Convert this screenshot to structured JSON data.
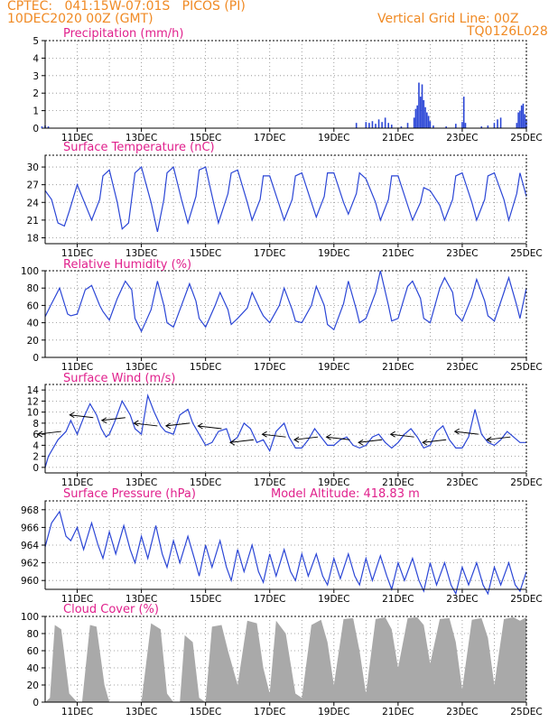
{
  "header": {
    "line1": "CPTEC:   041:15W-07:01S   PICOS (PI)",
    "line2": "10DEC2020 00Z (GMT)",
    "grid_note": "Vertical Grid Line: 00Z",
    "model_code": "TQ0126L028"
  },
  "colors": {
    "header": "#f08a24",
    "title": "#e0208c",
    "line": "#2b46d6",
    "cloud": "#a9a9a9"
  },
  "x_tick_labels": [
    "11DEC",
    "13DEC",
    "15DEC",
    "17DEC",
    "19DEC",
    "21DEC",
    "23DEC",
    "25DEC"
  ],
  "chart_data": [
    {
      "type": "bar",
      "title": "Precipitation (mm/h)",
      "ylim": [
        0,
        5
      ],
      "yticks": [
        0,
        1,
        2,
        3,
        4,
        5
      ],
      "x_days": [
        9.9,
        10.0,
        10.1,
        19.7,
        20.0,
        20.1,
        20.2,
        20.3,
        20.4,
        20.5,
        20.6,
        20.7,
        20.8,
        21.1,
        21.3,
        21.5,
        21.55,
        21.6,
        21.65,
        21.7,
        21.75,
        21.8,
        21.85,
        21.9,
        21.95,
        22.0,
        22.1,
        22.5,
        22.8,
        23.0,
        23.05,
        23.1,
        23.6,
        23.8,
        24.0,
        24.1,
        24.2,
        24.7,
        24.75,
        24.8,
        24.85,
        24.9,
        24.95,
        25.0
      ],
      "values": [
        0.1,
        0.15,
        0.1,
        0.3,
        0.35,
        0.3,
        0.4,
        0.25,
        0.5,
        0.35,
        0.6,
        0.3,
        0.2,
        0.1,
        0.3,
        0.6,
        1.1,
        1.3,
        2.6,
        1.8,
        2.5,
        1.6,
        1.2,
        0.9,
        0.7,
        0.4,
        0.15,
        0.1,
        0.25,
        0.35,
        1.8,
        0.3,
        0.1,
        0.15,
        0.3,
        0.5,
        0.6,
        0.3,
        0.9,
        1.0,
        1.3,
        1.4,
        0.8,
        0.5
      ]
    },
    {
      "type": "line",
      "title": "Surface Temperature (nC)",
      "ylim": [
        17,
        32
      ],
      "yticks": [
        18,
        21,
        24,
        27,
        30
      ],
      "x_days": [
        10.0,
        10.2,
        10.4,
        10.6,
        10.75,
        11.0,
        11.3,
        11.45,
        11.7,
        11.8,
        12.0,
        12.25,
        12.4,
        12.6,
        12.8,
        13.0,
        13.3,
        13.5,
        13.7,
        13.8,
        14.0,
        14.25,
        14.45,
        14.7,
        14.8,
        15.0,
        15.25,
        15.4,
        15.7,
        15.8,
        16.0,
        16.3,
        16.45,
        16.7,
        16.8,
        17.0,
        17.3,
        17.45,
        17.7,
        17.8,
        18.0,
        18.3,
        18.45,
        18.7,
        18.8,
        19.0,
        19.3,
        19.45,
        19.7,
        19.8,
        20.0,
        20.3,
        20.45,
        20.7,
        20.8,
        21.0,
        21.3,
        21.45,
        21.7,
        21.8,
        22.0,
        22.3,
        22.45,
        22.7,
        22.8,
        23.0,
        23.3,
        23.45,
        23.7,
        23.8,
        24.0,
        24.3,
        24.45,
        24.7,
        24.8,
        25.0
      ],
      "values": [
        26.0,
        24.5,
        20.5,
        20.0,
        22.5,
        27.0,
        23.0,
        21.0,
        24.5,
        28.5,
        29.5,
        24.0,
        19.5,
        20.5,
        29.0,
        30.0,
        24.0,
        19.0,
        24.5,
        29.0,
        30.0,
        24.5,
        20.5,
        25.0,
        29.5,
        30.0,
        24.0,
        20.5,
        25.5,
        29.0,
        29.5,
        24.0,
        21.0,
        24.5,
        28.5,
        28.5,
        23.5,
        21.0,
        24.5,
        28.5,
        29.0,
        24.0,
        21.5,
        25.0,
        29.0,
        29.0,
        24.0,
        22.0,
        25.5,
        29.0,
        28.0,
        24.0,
        21.0,
        24.5,
        28.5,
        28.5,
        23.5,
        21.0,
        24.0,
        26.5,
        26.0,
        23.5,
        21.0,
        24.5,
        28.5,
        29.0,
        24.0,
        21.0,
        24.5,
        28.5,
        29.0,
        24.5,
        21.0,
        25.5,
        29.0,
        25.0
      ]
    },
    {
      "type": "line",
      "title": "Relative Humidity (%)",
      "ylim": [
        0,
        100
      ],
      "yticks": [
        0,
        20,
        40,
        60,
        80,
        100
      ],
      "x_days": [
        10.0,
        10.2,
        10.45,
        10.7,
        10.8,
        11.0,
        11.25,
        11.45,
        11.7,
        11.8,
        12.0,
        12.25,
        12.5,
        12.7,
        12.8,
        13.0,
        13.3,
        13.5,
        13.7,
        13.8,
        14.0,
        14.25,
        14.5,
        14.7,
        14.8,
        15.0,
        15.3,
        15.45,
        15.7,
        15.8,
        16.0,
        16.3,
        16.45,
        16.7,
        16.8,
        17.0,
        17.3,
        17.45,
        17.7,
        17.8,
        18.0,
        18.3,
        18.45,
        18.7,
        18.8,
        19.0,
        19.3,
        19.45,
        19.7,
        19.8,
        20.0,
        20.3,
        20.45,
        20.7,
        20.8,
        21.0,
        21.3,
        21.45,
        21.7,
        21.8,
        22.0,
        22.3,
        22.45,
        22.7,
        22.8,
        23.0,
        23.3,
        23.45,
        23.7,
        23.8,
        24.0,
        24.3,
        24.45,
        24.7,
        24.8,
        25.0
      ],
      "values": [
        47,
        62,
        80,
        50,
        48,
        50,
        78,
        83,
        60,
        53,
        43,
        68,
        88,
        78,
        45,
        30,
        55,
        88,
        60,
        40,
        35,
        60,
        85,
        65,
        45,
        35,
        60,
        75,
        55,
        38,
        45,
        57,
        75,
        55,
        48,
        40,
        60,
        80,
        55,
        42,
        40,
        60,
        82,
        60,
        38,
        32,
        62,
        88,
        55,
        40,
        45,
        75,
        100,
        60,
        42,
        45,
        82,
        88,
        68,
        45,
        40,
        80,
        92,
        75,
        50,
        42,
        70,
        90,
        65,
        48,
        42,
        75,
        92,
        60,
        45,
        80
      ]
    },
    {
      "type": "line",
      "title": "Surface Wind (m/s)",
      "ylim": [
        -1,
        15
      ],
      "yticks": [
        0,
        2,
        4,
        6,
        8,
        10,
        12,
        14
      ],
      "x_days": [
        10.0,
        10.1,
        10.4,
        10.65,
        10.8,
        11.0,
        11.2,
        11.4,
        11.6,
        11.75,
        11.9,
        12.0,
        12.15,
        12.4,
        12.65,
        12.8,
        13.0,
        13.2,
        13.4,
        13.6,
        13.75,
        14.0,
        14.2,
        14.45,
        14.6,
        14.8,
        15.0,
        15.2,
        15.4,
        15.65,
        15.8,
        16.0,
        16.2,
        16.4,
        16.6,
        16.8,
        17.0,
        17.2,
        17.45,
        17.6,
        17.8,
        18.0,
        18.2,
        18.4,
        18.6,
        18.8,
        19.0,
        19.2,
        19.4,
        19.6,
        19.8,
        20.0,
        20.2,
        20.4,
        20.6,
        20.8,
        21.0,
        21.2,
        21.4,
        21.6,
        21.8,
        22.0,
        22.2,
        22.4,
        22.6,
        22.8,
        23.0,
        23.2,
        23.4,
        23.6,
        23.8,
        24.0,
        24.2,
        24.4,
        24.6,
        24.8,
        25.0
      ],
      "values": [
        0.0,
        2.0,
        5.0,
        6.5,
        8.5,
        6.0,
        9.0,
        11.5,
        9.5,
        7.0,
        5.5,
        6.0,
        8.0,
        12.0,
        9.5,
        7.0,
        6.0,
        13.0,
        10.0,
        7.5,
        6.5,
        6.0,
        9.5,
        10.5,
        8.0,
        6.0,
        4.0,
        4.5,
        6.5,
        7.0,
        4.5,
        5.5,
        8.0,
        7.0,
        4.5,
        5.0,
        3.0,
        6.5,
        8.0,
        5.5,
        3.5,
        3.5,
        5.0,
        7.0,
        5.5,
        4.0,
        4.0,
        5.0,
        5.5,
        4.0,
        3.5,
        4.0,
        5.5,
        6.0,
        4.5,
        3.5,
        4.5,
        6.0,
        7.0,
        5.5,
        3.5,
        4.0,
        6.5,
        7.5,
        5.0,
        3.5,
        3.5,
        5.5,
        10.5,
        6.0,
        4.5,
        4.0,
        5.0,
        6.5,
        5.5,
        4.5,
        4.5
      ]
    },
    {
      "type": "line",
      "title": "Surface Pressure (hPa)",
      "annotation": "Model Altitude: 418.83 m",
      "ylim": [
        959,
        969
      ],
      "yticks": [
        960,
        962,
        964,
        966,
        968
      ],
      "x_days": [
        10.0,
        10.2,
        10.45,
        10.65,
        10.8,
        11.0,
        11.2,
        11.45,
        11.65,
        11.8,
        12.0,
        12.2,
        12.45,
        12.65,
        12.8,
        13.0,
        13.2,
        13.45,
        13.65,
        13.8,
        14.0,
        14.2,
        14.45,
        14.65,
        14.8,
        15.0,
        15.2,
        15.45,
        15.65,
        15.8,
        16.0,
        16.2,
        16.45,
        16.65,
        16.8,
        17.0,
        17.2,
        17.45,
        17.65,
        17.8,
        18.0,
        18.2,
        18.45,
        18.65,
        18.8,
        19.0,
        19.2,
        19.45,
        19.65,
        19.8,
        20.0,
        20.2,
        20.45,
        20.65,
        20.8,
        21.0,
        21.2,
        21.45,
        21.65,
        21.8,
        22.0,
        22.2,
        22.45,
        22.65,
        22.8,
        23.0,
        23.2,
        23.45,
        23.65,
        23.8,
        24.0,
        24.2,
        24.45,
        24.65,
        24.8,
        25.0
      ],
      "values": [
        963.8,
        966.5,
        967.8,
        965.0,
        964.5,
        966.0,
        963.5,
        966.5,
        964.0,
        962.5,
        965.5,
        963.0,
        966.2,
        963.5,
        962.0,
        965.0,
        962.5,
        966.2,
        963.0,
        961.5,
        964.5,
        962.0,
        965.0,
        962.5,
        960.5,
        964.0,
        961.5,
        964.5,
        961.5,
        960.0,
        963.5,
        961.0,
        964.0,
        961.0,
        959.8,
        963.0,
        960.5,
        963.5,
        961.0,
        960.0,
        963.0,
        960.5,
        963.0,
        960.5,
        959.5,
        962.5,
        960.2,
        963.0,
        960.5,
        959.5,
        962.5,
        960.0,
        962.8,
        960.5,
        959.0,
        962.0,
        960.0,
        962.5,
        960.0,
        958.8,
        962.0,
        959.5,
        962.0,
        959.5,
        958.5,
        961.5,
        959.5,
        962.0,
        959.5,
        958.5,
        961.5,
        959.5,
        962.0,
        959.5,
        958.8,
        961.0
      ]
    },
    {
      "type": "area",
      "title": "Cloud Cover (%)",
      "ylim": [
        0,
        100
      ],
      "yticks": [
        0,
        20,
        40,
        60,
        80,
        100
      ],
      "x_days": [
        10.0,
        10.15,
        10.3,
        10.5,
        10.75,
        11.0,
        11.15,
        11.4,
        11.6,
        11.85,
        12.0,
        12.2,
        12.5,
        12.8,
        13.0,
        13.3,
        13.6,
        13.8,
        14.0,
        14.2,
        14.35,
        14.6,
        14.8,
        15.0,
        15.2,
        15.5,
        15.7,
        16.0,
        16.3,
        16.6,
        16.8,
        17.0,
        17.2,
        17.5,
        17.8,
        18.0,
        18.3,
        18.6,
        18.8,
        19.0,
        19.3,
        19.6,
        19.8,
        20.0,
        20.3,
        20.6,
        20.8,
        21.0,
        21.3,
        21.6,
        21.8,
        22.0,
        22.3,
        22.6,
        22.8,
        23.0,
        23.3,
        23.6,
        23.8,
        24.0,
        24.3,
        24.6,
        24.8,
        25.0
      ],
      "values": [
        0,
        5,
        90,
        85,
        10,
        0,
        0,
        90,
        88,
        20,
        0,
        0,
        0,
        0,
        0,
        92,
        85,
        10,
        0,
        0,
        78,
        70,
        5,
        0,
        88,
        90,
        60,
        20,
        95,
        92,
        40,
        10,
        95,
        80,
        10,
        5,
        90,
        96,
        70,
        20,
        97,
        98,
        60,
        10,
        97,
        99,
        85,
        40,
        98,
        99,
        90,
        45,
        97,
        98,
        70,
        15,
        96,
        98,
        75,
        20,
        97,
        99,
        95,
        99
      ]
    }
  ]
}
